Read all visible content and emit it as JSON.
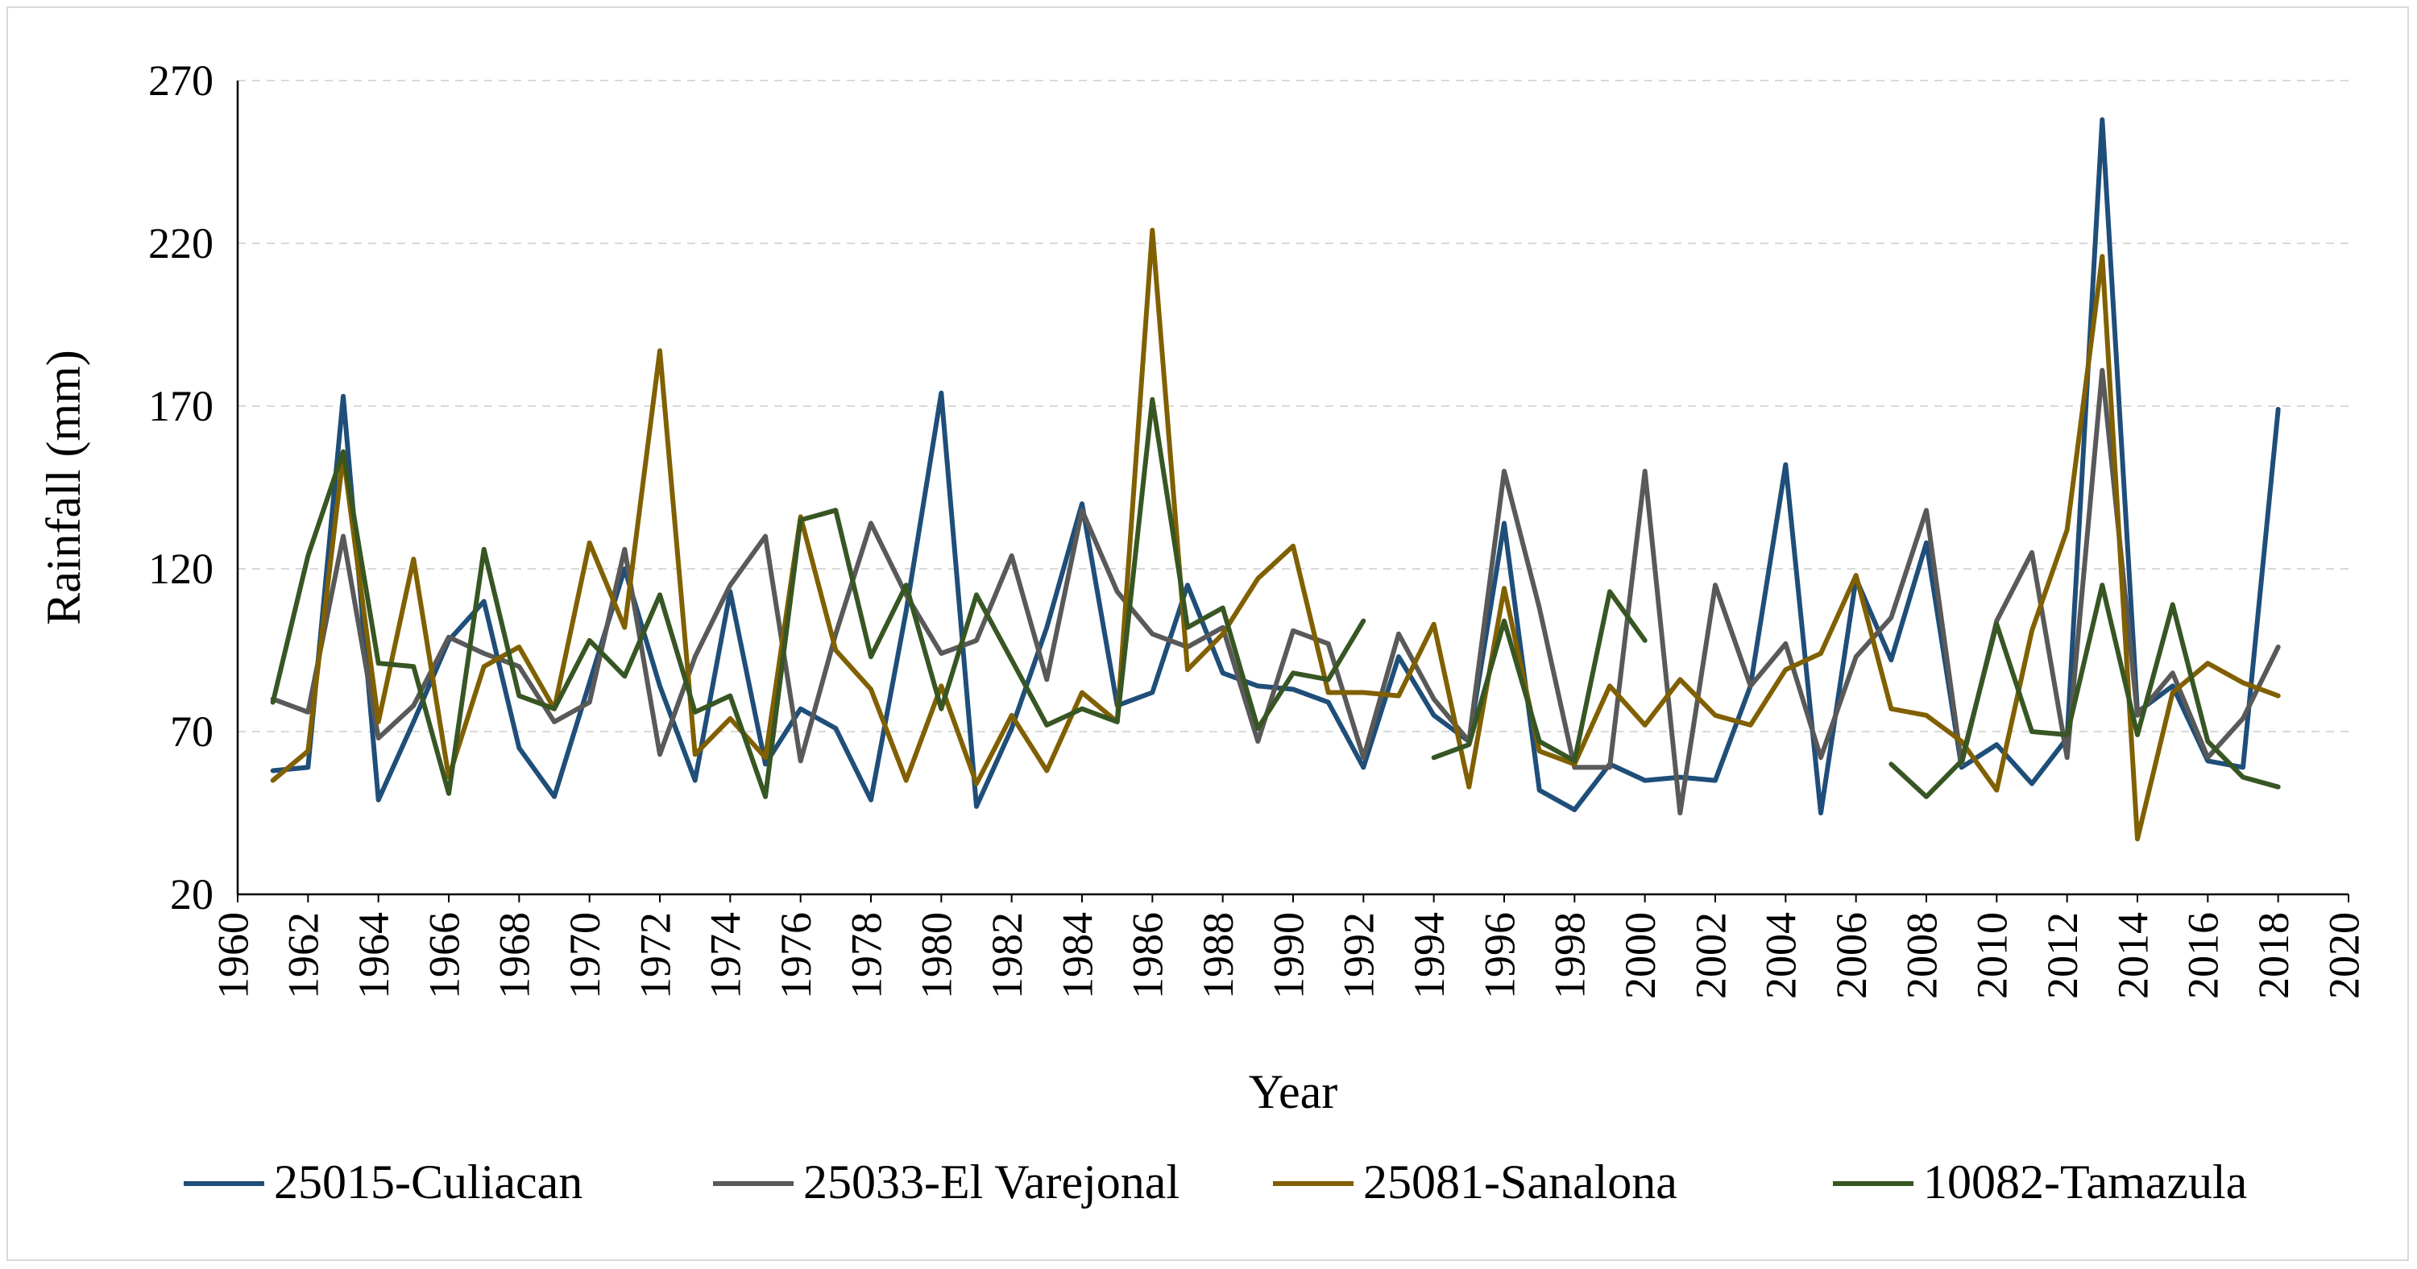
{
  "chart_data": {
    "type": "line",
    "title": "",
    "xlabel": "Year",
    "ylabel": "Rainfall (mm)",
    "xlim": [
      1960,
      2020
    ],
    "ylim": [
      20,
      270
    ],
    "x_ticks": [
      1960,
      1962,
      1964,
      1966,
      1968,
      1970,
      1972,
      1974,
      1976,
      1978,
      1980,
      1982,
      1984,
      1986,
      1988,
      1990,
      1992,
      1994,
      1996,
      1998,
      2000,
      2002,
      2004,
      2006,
      2008,
      2010,
      2012,
      2014,
      2016,
      2018,
      2020
    ],
    "y_ticks": [
      20,
      70,
      120,
      170,
      220,
      270
    ],
    "grid": "horizontal dashed",
    "legend_position": "bottom",
    "series": [
      {
        "name": "25015-Culiacan",
        "color": "#1f4e79",
        "points": [
          [
            1961,
            58
          ],
          [
            1962,
            59
          ],
          [
            1963,
            173
          ],
          [
            1964,
            49
          ],
          [
            1965,
            73
          ],
          [
            1966,
            98
          ],
          [
            1967,
            110
          ],
          [
            1968,
            65
          ],
          [
            1969,
            50
          ],
          [
            1970,
            85
          ],
          [
            1971,
            120
          ],
          [
            1972,
            84
          ],
          [
            1973,
            55
          ],
          [
            1974,
            113
          ],
          [
            1975,
            60
          ],
          [
            1976,
            77
          ],
          [
            1977,
            71
          ],
          [
            1978,
            49
          ],
          [
            1979,
            107
          ],
          [
            1980,
            174
          ],
          [
            1981,
            47
          ],
          [
            1982,
            71
          ],
          [
            1983,
            102
          ],
          [
            1984,
            140
          ],
          [
            1985,
            78
          ],
          [
            1986,
            82
          ],
          [
            1987,
            115
          ],
          [
            1988,
            88
          ],
          [
            1989,
            84
          ],
          [
            1990,
            83
          ],
          [
            1991,
            79
          ],
          [
            1992,
            59
          ],
          [
            1993,
            93
          ],
          [
            1994,
            75
          ],
          [
            1995,
            67
          ],
          [
            1996,
            134
          ],
          [
            1997,
            52
          ],
          [
            1998,
            46
          ],
          [
            1999,
            60
          ],
          [
            2000,
            55
          ],
          [
            2001,
            56
          ],
          [
            2002,
            55
          ],
          [
            2003,
            84
          ],
          [
            2004,
            152
          ],
          [
            2005,
            45
          ],
          [
            2006,
            117
          ],
          [
            2007,
            92
          ],
          [
            2008,
            128
          ],
          [
            2009,
            59
          ],
          [
            2010,
            66
          ],
          [
            2011,
            54
          ],
          [
            2012,
            68
          ],
          [
            2013,
            258
          ],
          [
            2014,
            76
          ],
          [
            2015,
            84
          ],
          [
            2016,
            61
          ],
          [
            2017,
            59
          ],
          [
            2018,
            169
          ]
        ]
      },
      {
        "name": "25033-El Varejonal",
        "color": "#595959",
        "points": [
          [
            1961,
            80
          ],
          [
            1962,
            76
          ],
          [
            1963,
            130
          ],
          [
            1964,
            68
          ],
          [
            1965,
            78
          ],
          [
            1966,
            99
          ],
          [
            1967,
            94
          ],
          [
            1968,
            90
          ],
          [
            1969,
            73
          ],
          [
            1970,
            79
          ],
          [
            1971,
            126
          ],
          [
            1972,
            63
          ],
          [
            1973,
            93
          ],
          [
            1974,
            115
          ],
          [
            1975,
            130
          ],
          [
            1976,
            61
          ],
          [
            1977,
            100
          ],
          [
            1978,
            134
          ],
          [
            1979,
            112
          ],
          [
            1980,
            94
          ],
          [
            1981,
            98
          ],
          [
            1982,
            124
          ],
          [
            1983,
            86
          ],
          [
            1984,
            138
          ],
          [
            1985,
            113
          ],
          [
            1986,
            100
          ],
          [
            1987,
            96
          ],
          [
            1988,
            102
          ],
          [
            1989,
            67
          ],
          [
            1990,
            101
          ],
          [
            1991,
            97
          ],
          [
            1992,
            62
          ],
          [
            1993,
            100
          ],
          [
            1994,
            80
          ],
          [
            1995,
            67
          ],
          [
            1996,
            150
          ],
          [
            1997,
            108
          ],
          [
            1998,
            59
          ],
          [
            1999,
            59
          ],
          [
            2000,
            150
          ],
          [
            2001,
            45
          ],
          [
            2002,
            115
          ],
          [
            2003,
            84
          ],
          [
            2004,
            97
          ],
          [
            2005,
            62
          ],
          [
            2006,
            93
          ],
          [
            2007,
            105
          ],
          [
            2008,
            138
          ],
          [
            2009,
            60
          ],
          [
            2010,
            104
          ],
          [
            2011,
            125
          ],
          [
            2012,
            62
          ],
          [
            2013,
            181
          ],
          [
            2014,
            75
          ],
          [
            2015,
            88
          ],
          [
            2016,
            62
          ],
          [
            2017,
            74
          ],
          [
            2018,
            96
          ]
        ]
      },
      {
        "name": "25081-Sanalona",
        "color": "#806000",
        "points": [
          [
            1961,
            55
          ],
          [
            1962,
            64
          ],
          [
            1963,
            155
          ],
          [
            1964,
            73
          ],
          [
            1965,
            123
          ],
          [
            1966,
            56
          ],
          [
            1967,
            90
          ],
          [
            1968,
            96
          ],
          [
            1969,
            77
          ],
          [
            1970,
            128
          ],
          [
            1971,
            102
          ],
          [
            1972,
            187
          ],
          [
            1973,
            63
          ],
          [
            1974,
            74
          ],
          [
            1975,
            62
          ],
          [
            1976,
            136
          ],
          [
            1977,
            95
          ],
          [
            1978,
            83
          ],
          [
            1979,
            55
          ],
          [
            1980,
            84
          ],
          [
            1981,
            54
          ],
          [
            1982,
            75
          ],
          [
            1983,
            58
          ],
          [
            1984,
            82
          ],
          [
            1985,
            73
          ],
          [
            1986,
            224
          ],
          [
            1987,
            89
          ],
          [
            1988,
            100
          ],
          [
            1989,
            117
          ],
          [
            1990,
            127
          ],
          [
            1991,
            82
          ],
          [
            1992,
            82
          ],
          [
            1993,
            81
          ],
          [
            1994,
            103
          ],
          [
            1995,
            53
          ],
          [
            1996,
            114
          ],
          [
            1997,
            64
          ],
          [
            1998,
            60
          ],
          [
            1999,
            84
          ],
          [
            2000,
            72
          ],
          [
            2001,
            86
          ],
          [
            2002,
            75
          ],
          [
            2003,
            72
          ],
          [
            2004,
            89
          ],
          [
            2005,
            94
          ],
          [
            2006,
            118
          ],
          [
            2007,
            77
          ],
          [
            2008,
            75
          ],
          [
            2009,
            67
          ],
          [
            2010,
            52
          ],
          [
            2011,
            101
          ],
          [
            2012,
            132
          ],
          [
            2013,
            216
          ],
          [
            2014,
            37
          ],
          [
            2015,
            82
          ],
          [
            2016,
            91
          ],
          [
            2017,
            85
          ],
          [
            2018,
            81
          ]
        ]
      },
      {
        "name": "10082-Tamazula",
        "color": "#375623",
        "points": [
          [
            1961,
            79
          ],
          [
            1962,
            124
          ],
          [
            1963,
            156
          ],
          [
            1964,
            91
          ],
          [
            1965,
            90
          ],
          [
            1966,
            51
          ],
          [
            1967,
            126
          ],
          [
            1968,
            81
          ],
          [
            1969,
            77
          ],
          [
            1970,
            98
          ],
          [
            1971,
            87
          ],
          [
            1972,
            112
          ],
          [
            1973,
            76
          ],
          [
            1974,
            81
          ],
          [
            1975,
            50
          ],
          [
            1976,
            135
          ],
          [
            1977,
            138
          ],
          [
            1978,
            93
          ],
          [
            1979,
            115
          ],
          [
            1980,
            77
          ],
          [
            1981,
            112
          ],
          [
            1982,
            92
          ],
          [
            1983,
            72
          ],
          [
            1984,
            77
          ],
          [
            1985,
            73
          ],
          [
            1986,
            172
          ],
          [
            1987,
            102
          ],
          [
            1988,
            108
          ],
          [
            1989,
            71
          ],
          [
            1990,
            88
          ],
          [
            1991,
            86
          ],
          [
            1992,
            104
          ],
          [
            1993,
            null
          ],
          [
            1994,
            62
          ],
          [
            1995,
            66
          ],
          [
            1996,
            104
          ],
          [
            1997,
            67
          ],
          [
            1998,
            61
          ],
          [
            1999,
            113
          ],
          [
            2000,
            98
          ],
          [
            2001,
            null
          ],
          [
            2002,
            null
          ],
          [
            2003,
            null
          ],
          [
            2004,
            null
          ],
          [
            2005,
            null
          ],
          [
            2006,
            null
          ],
          [
            2007,
            60
          ],
          [
            2008,
            50
          ],
          [
            2009,
            61
          ],
          [
            2010,
            103
          ],
          [
            2011,
            70
          ],
          [
            2012,
            69
          ],
          [
            2013,
            115
          ],
          [
            2014,
            69
          ],
          [
            2015,
            109
          ],
          [
            2016,
            67
          ],
          [
            2017,
            56
          ],
          [
            2018,
            53
          ]
        ]
      }
    ]
  }
}
